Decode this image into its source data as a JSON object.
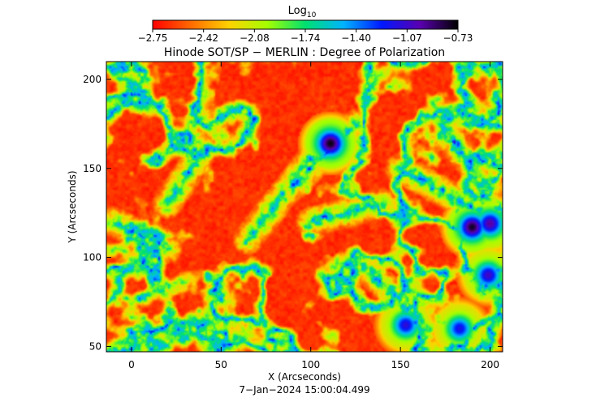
{
  "chart_data": {
    "type": "heatmap",
    "title": "Hinode SOT/SP − MERLIN : Degree of Polarization",
    "colorbar": {
      "label_main": "Log",
      "label_sub": "10",
      "ticks": [
        "−2.75",
        "−2.42",
        "−2.08",
        "−1.74",
        "−1.40",
        "−1.07",
        "−0.73"
      ],
      "range": [
        -2.75,
        -0.73
      ],
      "colors": [
        "#ff0000",
        "#ff6a00",
        "#ffd200",
        "#a5ff00",
        "#00e070",
        "#00b4ff",
        "#0018ff",
        "#5a00b0",
        "#000000"
      ]
    },
    "xlabel": "X (Arcseconds)",
    "ylabel": "Y (Arcseconds)",
    "x_ticks": [
      "0",
      "50",
      "100",
      "150",
      "200"
    ],
    "y_ticks": [
      "50",
      "100",
      "150",
      "200"
    ],
    "x_tick_values": [
      0,
      50,
      100,
      150,
      200
    ],
    "y_tick_values": [
      50,
      100,
      150,
      200
    ],
    "xlim": [
      -14,
      207
    ],
    "ylim": [
      47,
      210
    ],
    "spots": [
      {
        "x": 111,
        "y": 164,
        "value": -0.75
      },
      {
        "x": 190,
        "y": 117,
        "value": -0.78
      },
      {
        "x": 200,
        "y": 119,
        "value": -0.95
      },
      {
        "x": 199,
        "y": 90,
        "value": -1.05
      },
      {
        "x": 153,
        "y": 62,
        "value": -1.1
      },
      {
        "x": 183,
        "y": 60,
        "value": -1.15
      }
    ],
    "network_lanes": [
      {
        "x1": 90,
        "y1": 140,
        "x2": 125,
        "y2": 175
      },
      {
        "x1": 65,
        "y1": 110,
        "x2": 100,
        "y2": 155
      },
      {
        "x1": 130,
        "y1": 95,
        "x2": 165,
        "y2": 60
      },
      {
        "x1": 150,
        "y1": 150,
        "x2": 195,
        "y2": 125
      },
      {
        "x1": 20,
        "y1": 130,
        "x2": 40,
        "y2": 160
      },
      {
        "x1": 100,
        "y1": 120,
        "x2": 140,
        "y2": 130
      },
      {
        "x1": -10,
        "y1": 120,
        "x2": 20,
        "y2": 105
      },
      {
        "x1": 175,
        "y1": 170,
        "x2": 200,
        "y2": 140
      }
    ],
    "background_value": -2.75
  },
  "footer": {
    "timestamp": "7−Jan−2024 15:00:04.499"
  }
}
